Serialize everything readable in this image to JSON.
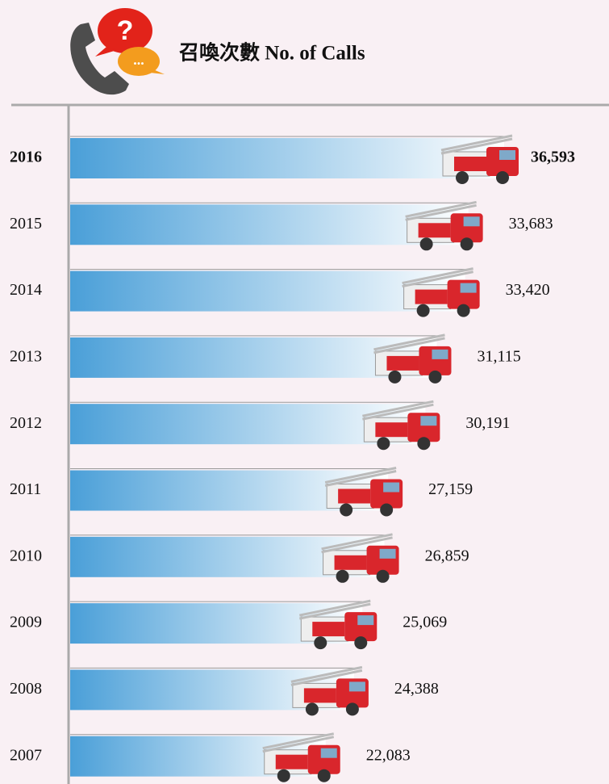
{
  "chart_data": {
    "type": "bar",
    "title": "召喚次數 No. of Calls",
    "categories": [
      "2016",
      "2015",
      "2014",
      "2013",
      "2012",
      "2011",
      "2010",
      "2009",
      "2008",
      "2007"
    ],
    "values": [
      36593,
      33683,
      33420,
      31115,
      30191,
      27159,
      26859,
      25069,
      24388,
      22083
    ],
    "value_labels": [
      "36,593",
      "33,683",
      "33,420",
      "31,115",
      "30,191",
      "27,159",
      "26,859",
      "25,069",
      "24,388",
      "22,083"
    ],
    "color": "#4a9fd8"
  }
}
